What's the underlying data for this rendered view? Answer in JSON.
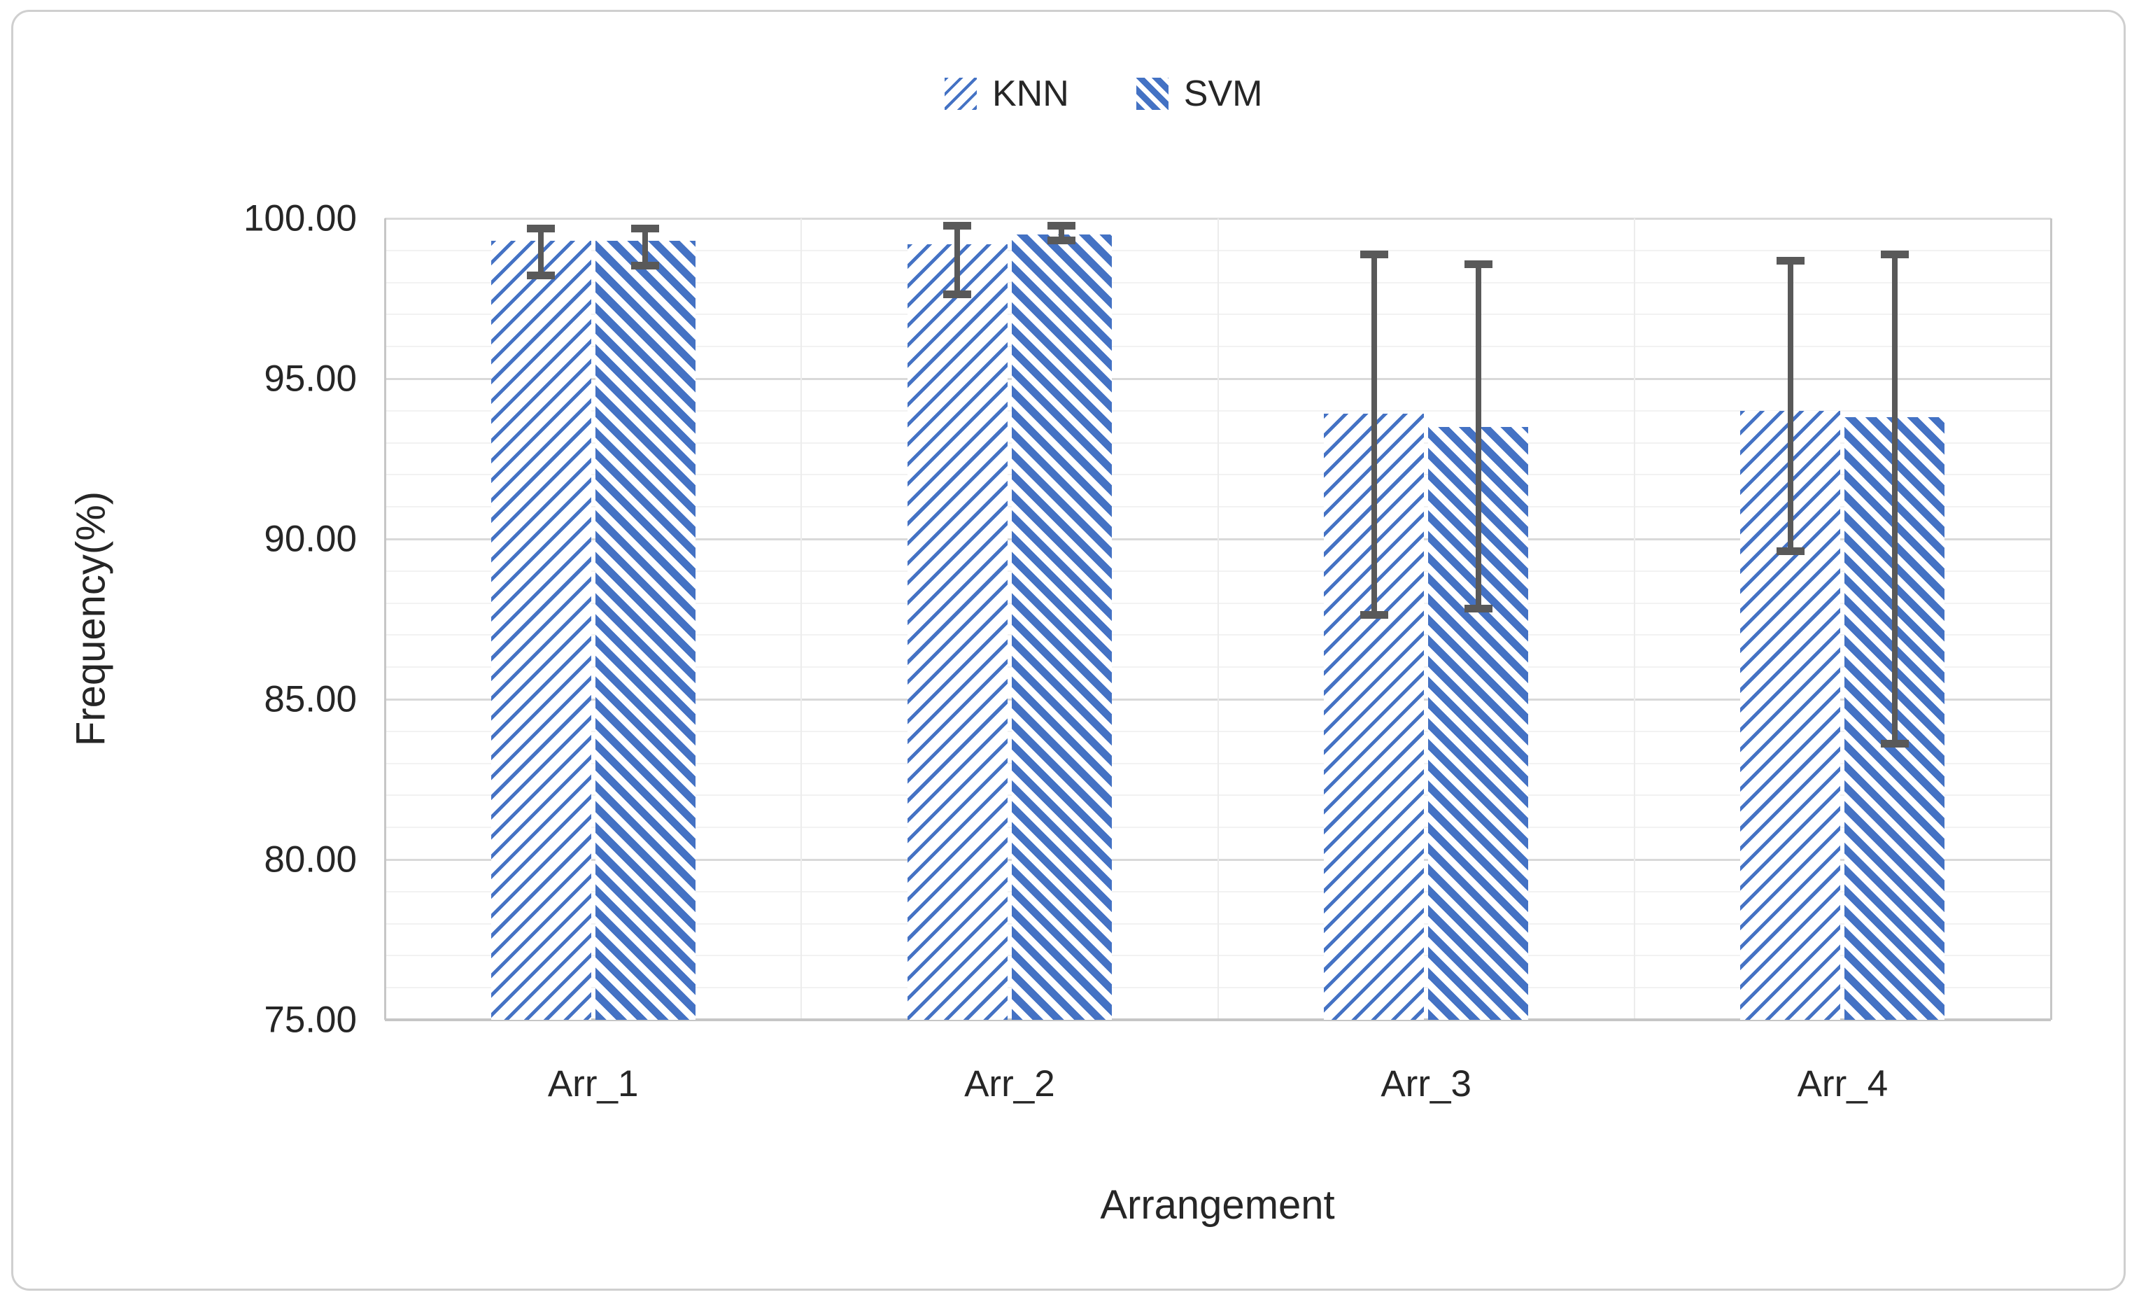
{
  "chart": {
    "y_axis_title": "Frequency(%)",
    "x_axis_title": "Arrangement",
    "legend": [
      {
        "label": "KNN",
        "swatch": "thin-forward-diagonal-hatch"
      },
      {
        "label": "SVM",
        "swatch": "wide-backward-diagonal-hatch"
      }
    ],
    "y_tick_labels": [
      "100.00",
      "95.00",
      "90.00",
      "85.00",
      "80.00",
      "75.00"
    ]
  },
  "chart_data": {
    "type": "bar",
    "categories": [
      "Arr_1",
      "Arr_2",
      "Arr_3",
      "Arr_4"
    ],
    "series": [
      {
        "name": "KNN",
        "pattern": "thin-forward-diagonal-hatch",
        "values": [
          99.3,
          99.2,
          93.9,
          94.0
        ],
        "error_high": [
          99.8,
          99.9,
          99.0,
          98.8
        ],
        "error_low": [
          98.1,
          97.5,
          87.5,
          89.5
        ]
      },
      {
        "name": "SVM",
        "pattern": "wide-backward-diagonal-hatch",
        "values": [
          99.3,
          99.5,
          93.5,
          93.8
        ],
        "error_high": [
          99.8,
          99.9,
          98.7,
          99.0
        ],
        "error_low": [
          98.4,
          99.2,
          87.7,
          83.5
        ]
      }
    ],
    "title": "",
    "xlabel": "Arrangement",
    "ylabel": "Frequency(%)",
    "ylim": [
      75,
      100
    ],
    "y_major_step": 5,
    "y_minor_step": 1,
    "y_tick_format": "2-decimals",
    "grid": "horizontal-major-and-minor, vertical-category-boundaries",
    "legend_position": "top-center",
    "colors": {
      "bar_blue": "#4472C4",
      "error_gray": "#595959",
      "major_grid": "#D9D9D9",
      "minor_grid": "#F2F2F2",
      "axis_line": "#C6C6C6",
      "frame_border": "#CFCFCF",
      "text": "#262626"
    }
  }
}
